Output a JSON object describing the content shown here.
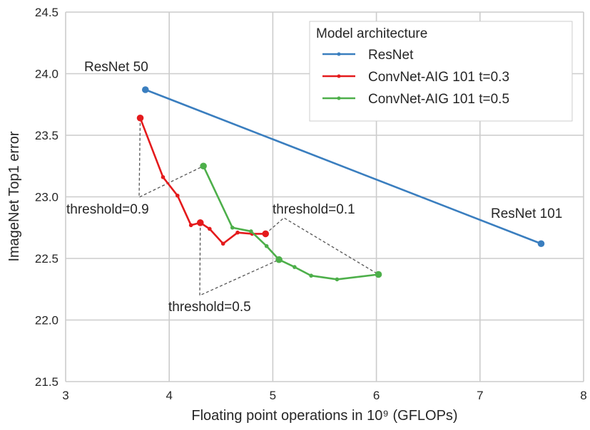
{
  "chart_data": {
    "type": "line",
    "xlabel": "Floating point operations in 10⁹ (GFLOPs)",
    "ylabel": "ImageNet Top1 error",
    "xlim": [
      3,
      8
    ],
    "ylim": [
      21.5,
      24.5
    ],
    "xticks": [
      "3",
      "4",
      "5",
      "6",
      "7",
      "8"
    ],
    "yticks": [
      "21.5",
      "22.0",
      "22.5",
      "23.0",
      "23.5",
      "24.0",
      "24.5"
    ],
    "grid": true,
    "legend": {
      "title": "Model architecture",
      "placement": "top-right"
    },
    "series": [
      {
        "name": "ResNet",
        "color": "#3a7ebf",
        "x": [
          3.77,
          7.59
        ],
        "y": [
          23.87,
          22.62
        ]
      },
      {
        "name": "ConvNet-AIG 101 t=0.3",
        "color": "#e41a1c",
        "x": [
          3.72,
          3.94,
          4.08,
          4.21,
          4.3,
          4.39,
          4.52,
          4.66,
          4.8,
          4.93
        ],
        "y": [
          23.64,
          23.16,
          23.01,
          22.77,
          22.79,
          22.74,
          22.62,
          22.71,
          22.7,
          22.7
        ],
        "highlight": [
          0,
          4,
          9
        ]
      },
      {
        "name": "ConvNet-AIG 101 t=0.5",
        "color": "#4daf4a",
        "x": [
          4.33,
          4.61,
          4.79,
          4.94,
          5.06,
          5.21,
          5.37,
          5.62,
          6.02
        ],
        "y": [
          23.25,
          22.75,
          22.72,
          22.6,
          22.49,
          22.43,
          22.36,
          22.33,
          22.37
        ],
        "highlight": [
          0,
          4,
          8
        ]
      }
    ],
    "annotations": [
      {
        "text": "ResNet 50"
      },
      {
        "text": "ResNet 101"
      },
      {
        "text": "threshold=0.9"
      },
      {
        "text": "threshold=0.5"
      },
      {
        "text": "threshold=0.1"
      }
    ]
  }
}
